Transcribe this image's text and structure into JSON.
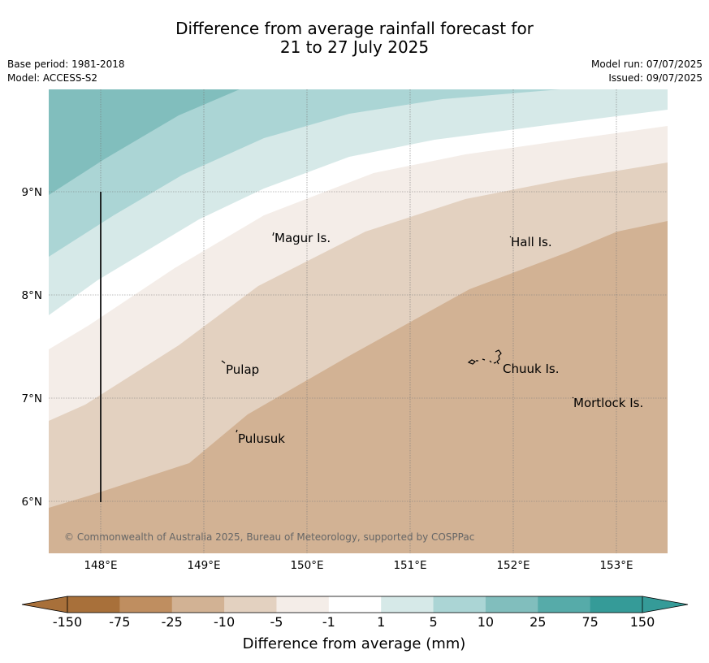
{
  "title": {
    "line1": "Difference from average rainfall forecast for",
    "line2": "21 to 27 July 2025"
  },
  "meta": {
    "base_period": "Base period: 1981-2018",
    "model": "Model: ACCESS-S2",
    "model_run": "Model run: 07/07/2025",
    "issued": "Issued: 09/07/2025"
  },
  "map": {
    "lon_labels": [
      "148°E",
      "149°E",
      "150°E",
      "151°E",
      "152°E",
      "153°E"
    ],
    "lat_labels": [
      "9°N",
      "8°N",
      "7°N",
      "6°N"
    ],
    "places": [
      "Magur Is.",
      "Hall Is.",
      "Pulap",
      "Chuuk Is.",
      "Mortlock Is.",
      "Pulusuk"
    ],
    "copyright": "© Commonwealth of Australia 2025, Bureau of Meteorology, supported by COSPPac"
  },
  "colorbar": {
    "labels": [
      "-150",
      "-75",
      "-25",
      "-10",
      "-5",
      "-1",
      "1",
      "5",
      "10",
      "25",
      "75",
      "150"
    ],
    "colors": [
      "#a8703a",
      "#bf8e60",
      "#d2b294",
      "#e3d1c0",
      "#f4ede8",
      "#ffffff",
      "#d6e9e8",
      "#abd5d5",
      "#81bebd",
      "#56aba9",
      "#359b98"
    ],
    "title": "Difference from average (mm)"
  }
}
